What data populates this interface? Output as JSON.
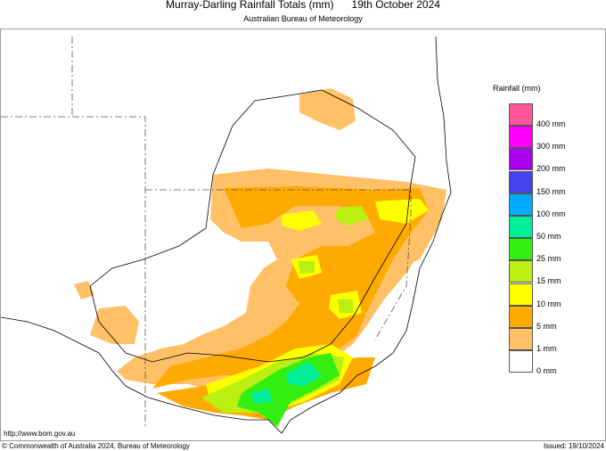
{
  "title": {
    "main": "Murray-Darling Rainfall Totals (mm)",
    "date": "19th October 2024",
    "agency": "Australian Bureau of Meteorology"
  },
  "legend": {
    "title": "Rainfall (mm)",
    "bins": [
      {
        "label": "400 mm",
        "color": "#ff5599"
      },
      {
        "label": "300 mm",
        "color": "#ff00ff"
      },
      {
        "label": "200 mm",
        "color": "#aa00ee"
      },
      {
        "label": "150 mm",
        "color": "#4444ee"
      },
      {
        "label": "100 mm",
        "color": "#00aaff"
      },
      {
        "label": "50 mm",
        "color": "#00ee99"
      },
      {
        "label": "25 mm",
        "color": "#33ee11"
      },
      {
        "label": "15 mm",
        "color": "#bbee11"
      },
      {
        "label": "10 mm",
        "color": "#ffff00"
      },
      {
        "label": "5 mm",
        "color": "#ffaa00"
      },
      {
        "label": "1 mm",
        "color": "#ffc066"
      },
      {
        "label": "0 mm",
        "color": "#ffffff"
      }
    ]
  },
  "footer": {
    "url": "http://www.bom.gov.au",
    "copyright": "© Commonwealth of Australia 2024, Bureau of Meteorology",
    "issued": "Issued: 19/10/2024"
  }
}
